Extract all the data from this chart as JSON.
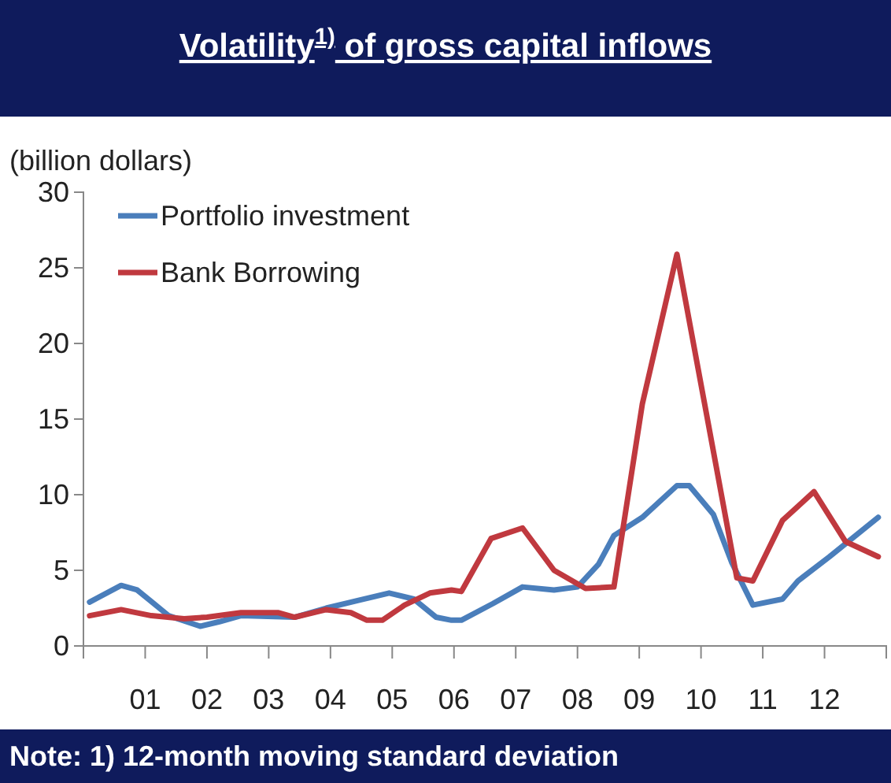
{
  "chart_data": {
    "type": "line",
    "title": "Volatility$^{1)}$ of  gross capital inflows",
    "ylabel": "(billion dollars)",
    "annotations": [
      "Note: 1) 12-month moving standard deviation"
    ],
    "xlim": [
      2000,
      2013
    ],
    "xticks": [
      {
        "value": 2000,
        "label": null
      },
      {
        "value": 2001,
        "label": "01"
      },
      {
        "value": 2002,
        "label": "02"
      },
      {
        "value": 2003,
        "label": "03"
      },
      {
        "value": 2004,
        "label": "04"
      },
      {
        "value": 2005,
        "label": "05"
      },
      {
        "value": 2006,
        "label": "06"
      },
      {
        "value": 2007,
        "label": "07"
      },
      {
        "value": 2008,
        "label": "08"
      },
      {
        "value": 2009,
        "label": "09"
      },
      {
        "value": 2010,
        "label": "10"
      },
      {
        "value": 2011,
        "label": "11"
      },
      {
        "value": 2012,
        "label": "12"
      },
      {
        "value": 2013,
        "label": null
      }
    ],
    "ylim": [
      0,
      30
    ],
    "yticks": [
      0,
      5,
      10,
      15,
      20,
      25,
      30
    ],
    "grid": false,
    "legend": "top left",
    "marker": "none",
    "line_style": "solid",
    "series": [
      {
        "name": "Portfolio investment",
        "color": "#4a7ebb",
        "x": [
          2000.1,
          2000.61,
          2000.87,
          2001.38,
          2001.89,
          2002.2,
          2002.55,
          2003.42,
          2003.93,
          2004.44,
          2004.95,
          2005.35,
          2005.71,
          2005.96,
          2006.12,
          2006.63,
          2007.11,
          2007.62,
          2008.0,
          2008.34,
          2008.59,
          2009.05,
          2009.61,
          2009.81,
          2010.2,
          2010.5,
          2010.84,
          2011.32,
          2011.57,
          2012.08,
          2012.87
        ],
        "values": [
          2.9,
          4.0,
          3.7,
          2.0,
          1.3,
          1.6,
          2.0,
          1.9,
          2.5,
          3.0,
          3.5,
          3.1,
          1.9,
          1.7,
          1.7,
          2.8,
          3.9,
          3.7,
          3.9,
          5.4,
          7.3,
          8.5,
          10.6,
          10.6,
          8.7,
          5.5,
          2.7,
          3.1,
          4.3,
          5.9,
          8.5
        ]
      },
      {
        "name": "Bank Borrowing",
        "color": "#c0393f",
        "x": [
          2000.1,
          2000.61,
          2001.1,
          2001.63,
          2002.0,
          2002.55,
          2003.16,
          2003.42,
          2003.93,
          2004.33,
          2004.59,
          2004.84,
          2005.2,
          2005.61,
          2005.96,
          2006.12,
          2006.6,
          2007.11,
          2007.62,
          2008.13,
          2008.59,
          2009.05,
          2009.61,
          2010.58,
          2010.84,
          2011.32,
          2011.83,
          2012.34,
          2012.87
        ],
        "values": [
          2.0,
          2.4,
          2.0,
          1.8,
          1.9,
          2.2,
          2.2,
          1.9,
          2.4,
          2.2,
          1.7,
          1.7,
          2.7,
          3.5,
          3.7,
          3.6,
          7.1,
          7.8,
          5.0,
          3.8,
          3.9,
          16.0,
          25.9,
          4.5,
          4.3,
          8.3,
          10.2,
          6.9,
          5.9
        ]
      }
    ]
  }
}
